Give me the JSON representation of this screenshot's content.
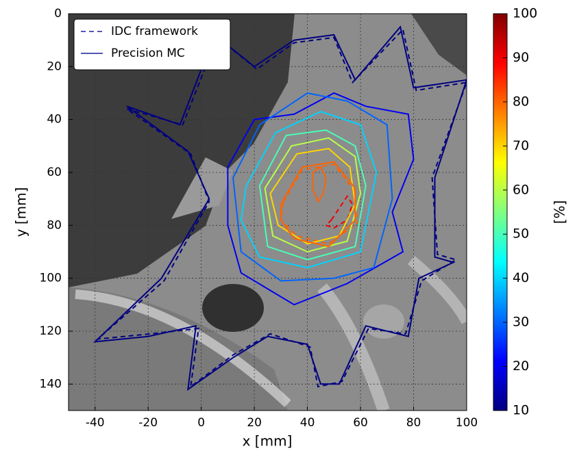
{
  "chart_data": {
    "type": "contour",
    "xlabel": "x [mm]",
    "ylabel": "y [mm]",
    "xlim": [
      -50,
      100
    ],
    "xticks": [
      -40,
      -20,
      0,
      20,
      40,
      60,
      80,
      100
    ],
    "ylim": [
      150,
      0
    ],
    "yticks": [
      0,
      20,
      40,
      60,
      80,
      100,
      120,
      140
    ],
    "grid": true,
    "legend": "upper left",
    "colorbar": {
      "label": "[%]",
      "lim": [
        10,
        100
      ],
      "ticks": [
        10,
        20,
        30,
        40,
        50,
        60,
        70,
        80,
        90,
        100
      ],
      "colormap": "jet"
    },
    "series": [
      {
        "name": "IDC framework",
        "linestyle": "dashed",
        "contours": [
          {
            "level": 10,
            "x": [
              -28,
              -7,
              6,
              21,
              35,
              50,
              57,
              76,
              81,
              100,
              87,
              89,
              96,
              83,
              77,
              63,
              53,
              44,
              41,
              26,
              12,
              -4,
              -1,
              -19,
              -39,
              -14,
              3,
              -4
            ],
            "y": [
              36,
              42,
              9,
              21,
              11,
              9,
              26,
              6,
              29,
              26,
              62,
              91,
              93,
              101,
              121,
              119,
              139,
              141,
              126,
              121,
              129,
              141,
              119,
              121,
              123,
              101,
              71,
              53
            ]
          },
          {
            "level": 80,
            "x": [
              31,
              38,
              50,
              57,
              59,
              48,
              36,
              30
            ],
            "y": [
              71,
              59,
              57,
              66,
              79,
              87,
              84,
              78
            ]
          },
          {
            "level": 90,
            "x": [
              49,
              55,
              57,
              55,
              50,
              47
            ],
            "y": [
              78,
              69,
              72,
              78,
              81,
              80
            ]
          }
        ]
      },
      {
        "name": "Precision MC",
        "linestyle": "solid",
        "contours": [
          {
            "level": 10,
            "x": [
              -28,
              -8,
              5,
              20,
              35,
              50,
              58,
              75,
              80,
              100,
              88,
              88,
              95,
              82,
              78,
              62,
              52,
              45,
              40,
              25,
              12,
              -5,
              -2,
              -20,
              -40,
              -15,
              3,
              -5
            ],
            "y": [
              35,
              42,
              8,
              20,
              10,
              8,
              25,
              5,
              28,
              25,
              62,
              92,
              94,
              100,
              122,
              118,
              140,
              140,
              125,
              122,
              130,
              142,
              118,
              122,
              124,
              100,
              70,
              52
            ]
          },
          {
            "level": 20,
            "x": [
              10,
              20,
              35,
              50,
              62,
              78,
              80,
              72,
              76,
              55,
              35,
              15,
              10
            ],
            "y": [
              58,
              40,
              38,
              30,
              35,
              38,
              55,
              75,
              90,
              102,
              110,
              98,
              80
            ]
          },
          {
            "level": 30,
            "x": [
              12,
              22,
              40,
              55,
              70,
              72,
              65,
              50,
              30,
              15
            ],
            "y": [
              62,
              42,
              30,
              33,
              42,
              70,
              96,
              100,
              101,
              90
            ]
          },
          {
            "level": 40,
            "x": [
              17,
              28,
              45,
              60,
              66,
              60,
              40,
              22,
              15
            ],
            "y": [
              65,
              45,
              37,
              42,
              60,
              90,
              96,
              92,
              78
            ]
          },
          {
            "level": 50,
            "x": [
              22,
              32,
              47,
              58,
              62,
              58,
              40,
              25
            ],
            "y": [
              65,
              46,
              44,
              50,
              65,
              88,
              93,
              88
            ]
          },
          {
            "level": 60,
            "x": [
              24,
              34,
              48,
              58,
              60,
              55,
              40,
              27
            ],
            "y": [
              66,
              50,
              47,
              54,
              68,
              86,
              90,
              84
            ]
          },
          {
            "level": 70,
            "x": [
              26,
              36,
              48,
              56,
              58,
              52,
              40,
              29
            ],
            "y": [
              68,
              53,
              51,
              58,
              72,
              84,
              87,
              80
            ]
          },
          {
            "level": 80,
            "x": [
              30,
              38,
              50,
              58,
              58,
              48,
              35,
              30
            ],
            "y": [
              72,
              58,
              56,
              66,
              78,
              88,
              85,
              78
            ]
          },
          {
            "level": 80,
            "x": [
              42,
              45,
              47,
              46,
              44,
              42
            ],
            "y": [
              60,
              58,
              62,
              68,
              71,
              66
            ]
          }
        ]
      }
    ]
  }
}
